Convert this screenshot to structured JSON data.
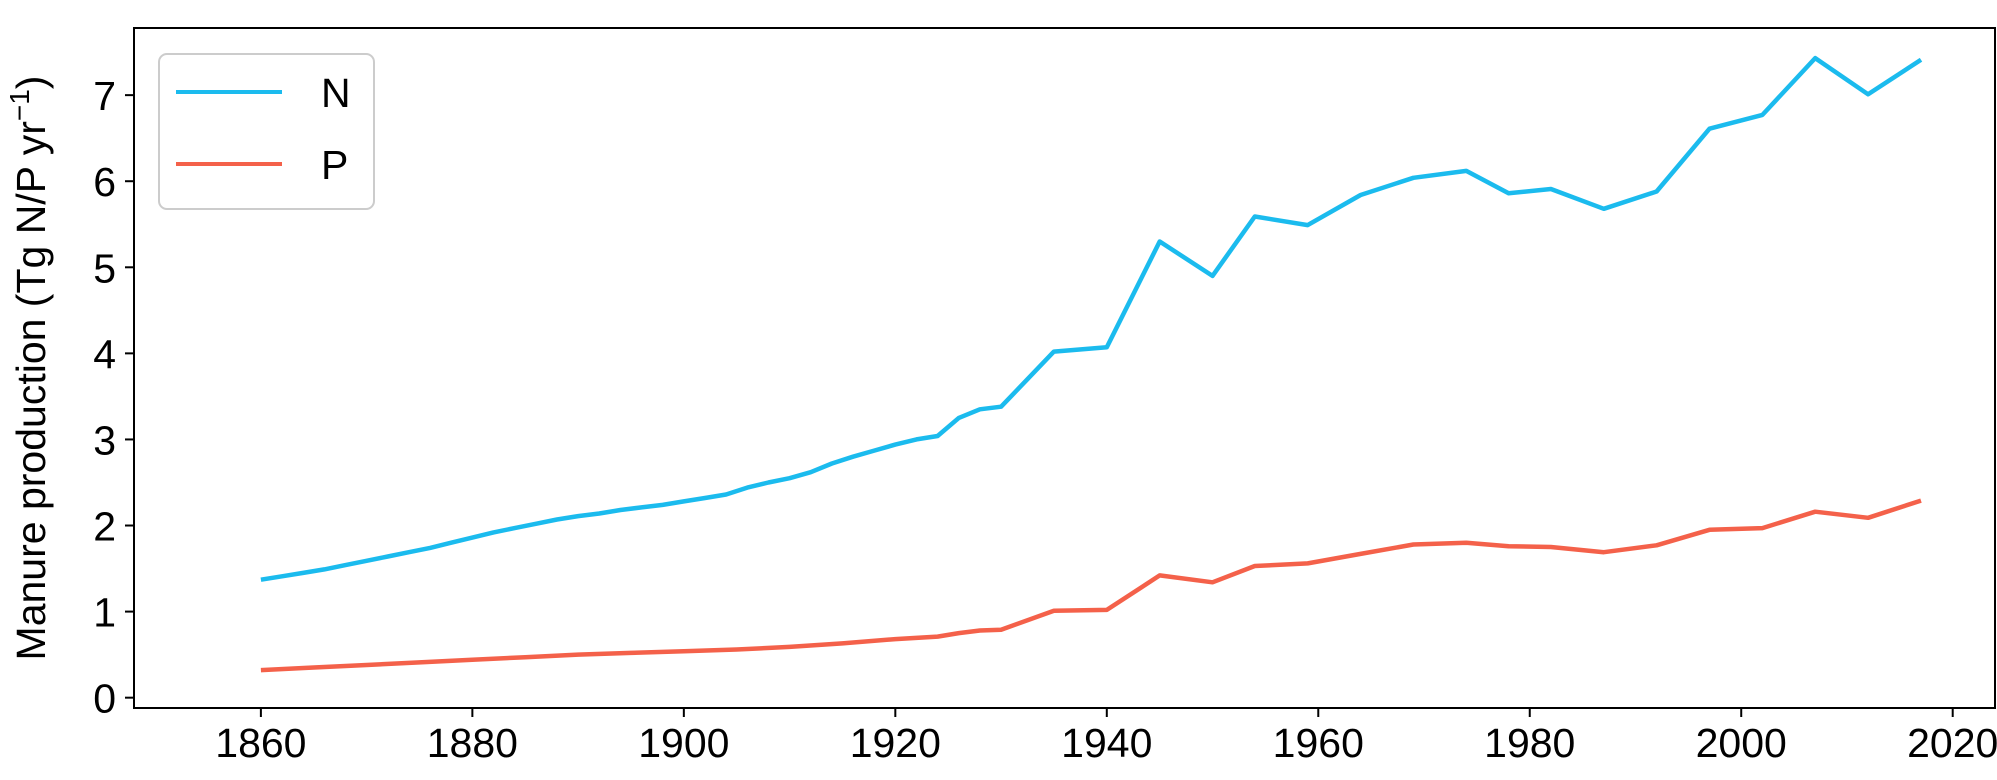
{
  "chart_data": {
    "type": "line",
    "title": "",
    "xlabel": "",
    "ylabel_main": "Manure production  (Tg N/P yr",
    "ylabel_exp": "−1",
    "ylabel_close": ")",
    "xlim": [
      1848,
      2024
    ],
    "ylim": [
      -0.12,
      7.78
    ],
    "xticks": [
      1860,
      1880,
      1900,
      1920,
      1940,
      1960,
      1980,
      2000,
      2020
    ],
    "yticks": [
      0,
      1,
      2,
      3,
      4,
      5,
      6,
      7
    ],
    "grid": false,
    "legend": "upper left",
    "series": [
      {
        "name": "N",
        "color": "#1bbbee",
        "x": [
          1860,
          1862,
          1864,
          1866,
          1868,
          1870,
          1872,
          1874,
          1876,
          1878,
          1880,
          1882,
          1884,
          1886,
          1888,
          1890,
          1892,
          1894,
          1896,
          1898,
          1900,
          1902,
          1904,
          1906,
          1908,
          1910,
          1912,
          1914,
          1916,
          1918,
          1920,
          1922,
          1924,
          1926,
          1928,
          1930,
          1935,
          1940,
          1945,
          1950,
          1954,
          1959,
          1964,
          1969,
          1974,
          1978,
          1982,
          1987,
          1992,
          1997,
          2002,
          2007,
          2012,
          2017
        ],
        "y": [
          1.37,
          1.41,
          1.45,
          1.49,
          1.54,
          1.59,
          1.64,
          1.69,
          1.74,
          1.8,
          1.86,
          1.92,
          1.97,
          2.02,
          2.07,
          2.11,
          2.14,
          2.18,
          2.21,
          2.24,
          2.28,
          2.32,
          2.36,
          2.44,
          2.5,
          2.55,
          2.62,
          2.72,
          2.8,
          2.87,
          2.94,
          3.0,
          3.04,
          3.25,
          3.35,
          3.38,
          4.02,
          4.07,
          5.3,
          4.9,
          5.59,
          5.49,
          5.84,
          6.04,
          6.12,
          5.86,
          5.91,
          5.68,
          5.88,
          6.61,
          6.77,
          7.43,
          7.01,
          7.41
        ]
      },
      {
        "name": "P",
        "color": "#f4614a",
        "x": [
          1860,
          1865,
          1870,
          1875,
          1880,
          1885,
          1890,
          1895,
          1900,
          1905,
          1910,
          1915,
          1920,
          1924,
          1926,
          1928,
          1930,
          1935,
          1940,
          1945,
          1950,
          1954,
          1959,
          1964,
          1969,
          1974,
          1978,
          1982,
          1987,
          1992,
          1997,
          2002,
          2007,
          2012,
          2017
        ],
        "y": [
          0.32,
          0.35,
          0.38,
          0.41,
          0.44,
          0.47,
          0.5,
          0.52,
          0.54,
          0.56,
          0.59,
          0.63,
          0.68,
          0.71,
          0.75,
          0.78,
          0.79,
          1.01,
          1.02,
          1.42,
          1.34,
          1.53,
          1.56,
          1.67,
          1.78,
          1.8,
          1.76,
          1.75,
          1.69,
          1.77,
          1.95,
          1.97,
          2.16,
          2.09,
          2.29
        ]
      }
    ]
  }
}
